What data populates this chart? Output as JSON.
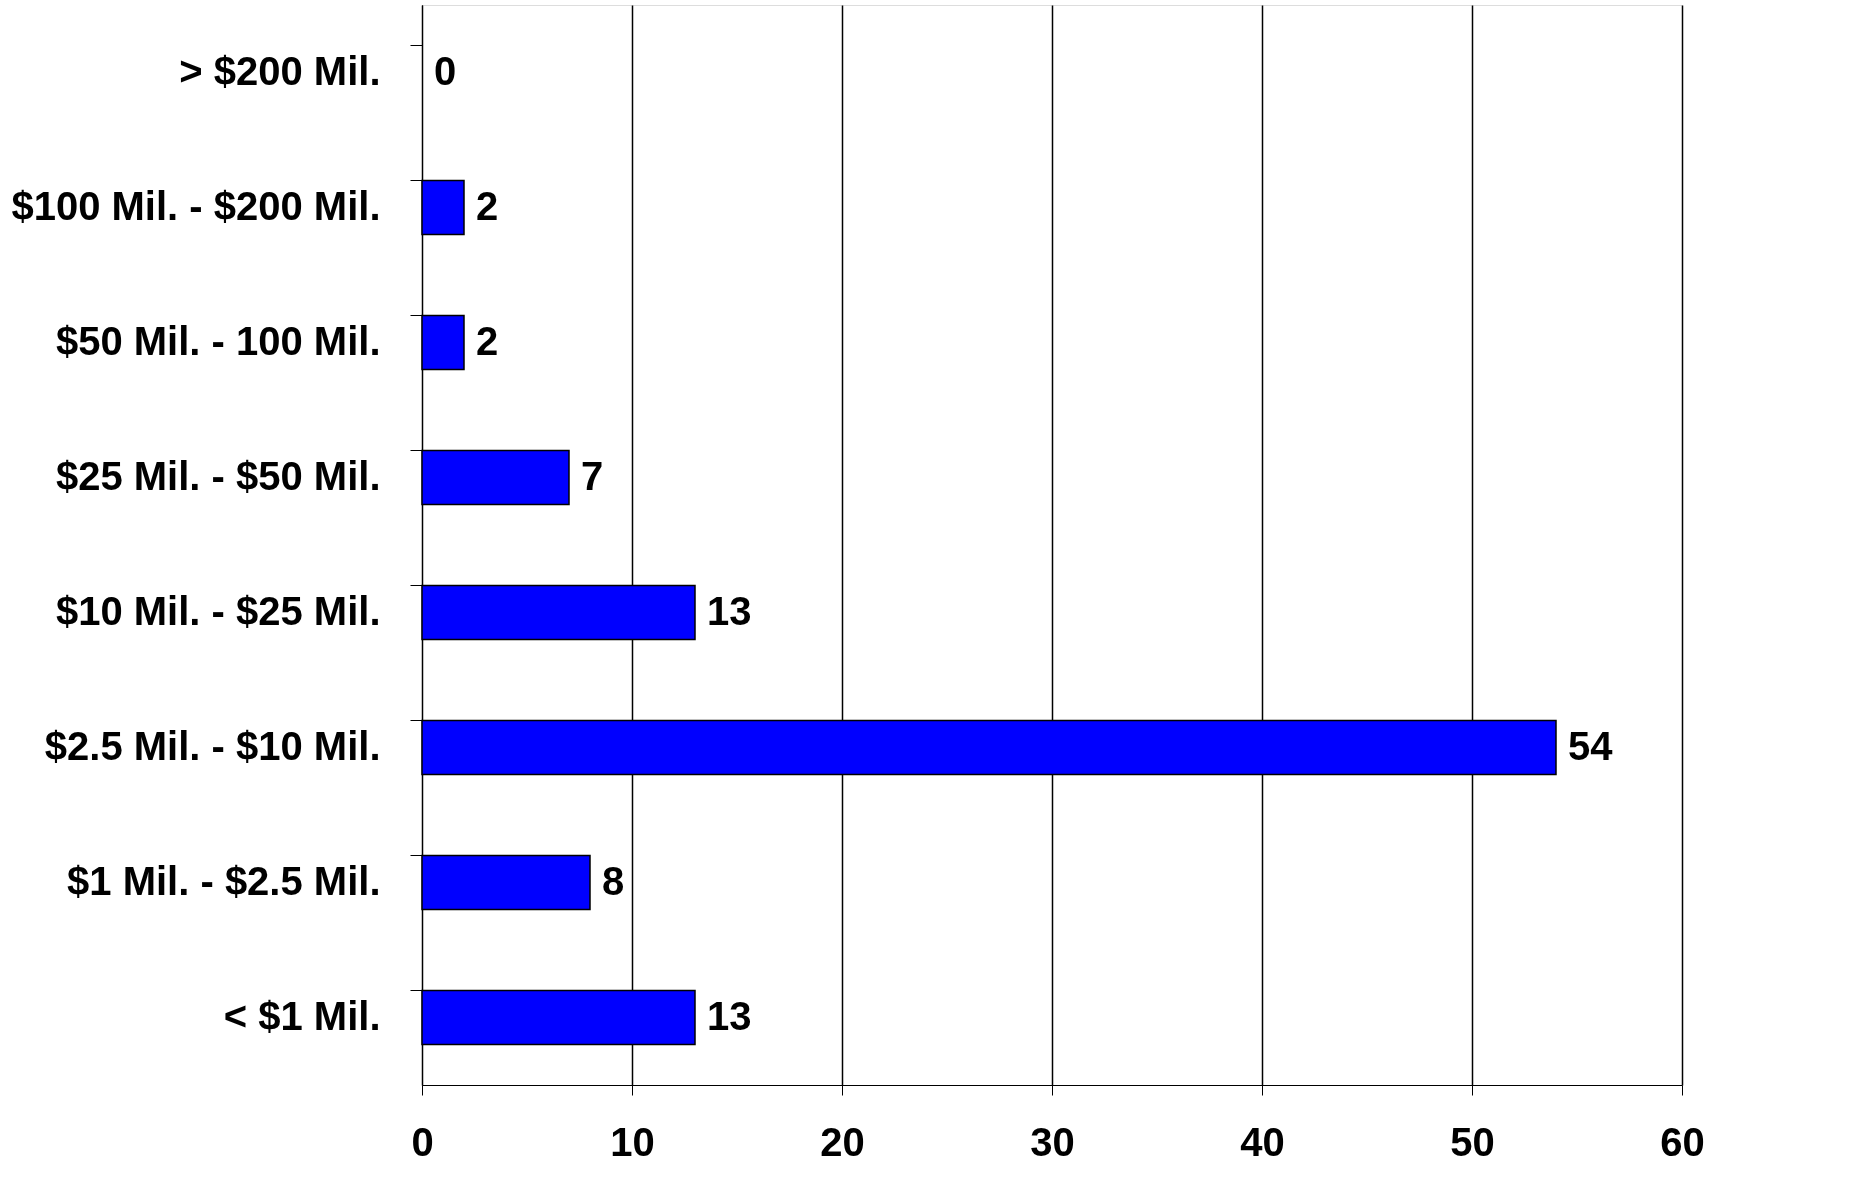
{
  "chart_data": {
    "type": "bar",
    "orientation": "horizontal",
    "categories": [
      "> $200 Mil.",
      "$100 Mil. - $200 Mil.",
      "$50 Mil. - 100 Mil.",
      "$25 Mil. - $50 Mil.",
      "$10 Mil. - $25 Mil.",
      "$2.5 Mil. - $10 Mil.",
      "$1 Mil. - $2.5 Mil.",
      "< $1 Mil."
    ],
    "values": [
      0,
      2,
      2,
      7,
      13,
      54,
      8,
      13
    ],
    "color": "#0000ff",
    "xlim": [
      0,
      60
    ],
    "xticks": [
      0,
      10,
      20,
      30,
      40,
      50,
      60
    ],
    "grid": "x",
    "data_labels": true
  }
}
